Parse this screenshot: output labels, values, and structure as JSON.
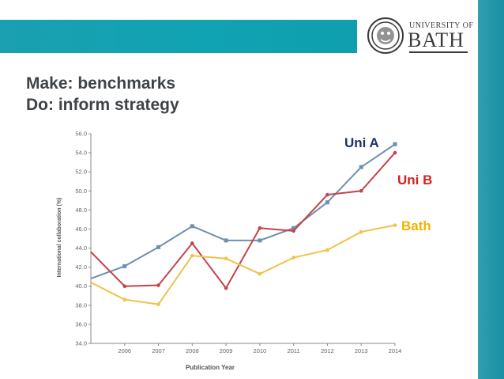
{
  "slide": {
    "heading_line1": "Make: benchmarks",
    "heading_line2": "Do: inform strategy"
  },
  "logo": {
    "line1": "UNIVERSITY OF",
    "line2": "BATH"
  },
  "colors": {
    "band": "#12a2b2",
    "uniA": "#6f8fb0",
    "uniB": "#c2444a",
    "bath": "#f0c24a",
    "labelA": "#1f2f6a",
    "labelB": "#d42020",
    "labelBath": "#f0b400"
  },
  "chart_data": {
    "type": "line",
    "xlabel": "Publication Year",
    "ylabel": "International collaboration (%)",
    "ylim": [
      34.0,
      56.0
    ],
    "yticks": [
      "34.0",
      "36.0",
      "38.0",
      "40.0",
      "42.0",
      "44.0",
      "46.0",
      "48.0",
      "50.0",
      "52.0",
      "54.0",
      "56.0"
    ],
    "categories": [
      "2006",
      "2007",
      "2008",
      "2009",
      "2010",
      "2011",
      "2012",
      "2013",
      "2014"
    ],
    "series": [
      {
        "name": "Uni A",
        "x": [
          2005,
          2006,
          2007,
          2008,
          2009,
          2010,
          2011,
          2012,
          2013,
          2014
        ],
        "values": [
          40.8,
          42.1,
          44.1,
          46.3,
          44.8,
          44.8,
          46.1,
          48.8,
          52.5,
          54.9
        ],
        "color": "#6f8fb0",
        "label_color": "#1f2f6a"
      },
      {
        "name": "Uni B",
        "x": [
          2005,
          2006,
          2007,
          2008,
          2009,
          2010,
          2011,
          2012,
          2013,
          2014
        ],
        "values": [
          43.6,
          40.0,
          40.1,
          44.5,
          39.8,
          46.1,
          45.8,
          49.6,
          50.0,
          54.0
        ],
        "color": "#c2444a",
        "label_color": "#d42020"
      },
      {
        "name": "Bath",
        "x": [
          2005,
          2006,
          2007,
          2008,
          2009,
          2010,
          2011,
          2012,
          2013,
          2014
        ],
        "values": [
          40.4,
          38.6,
          38.1,
          43.2,
          42.9,
          41.3,
          43.0,
          43.8,
          45.7,
          46.4
        ],
        "color": "#f0c24a",
        "label_color": "#f0b400"
      }
    ]
  }
}
